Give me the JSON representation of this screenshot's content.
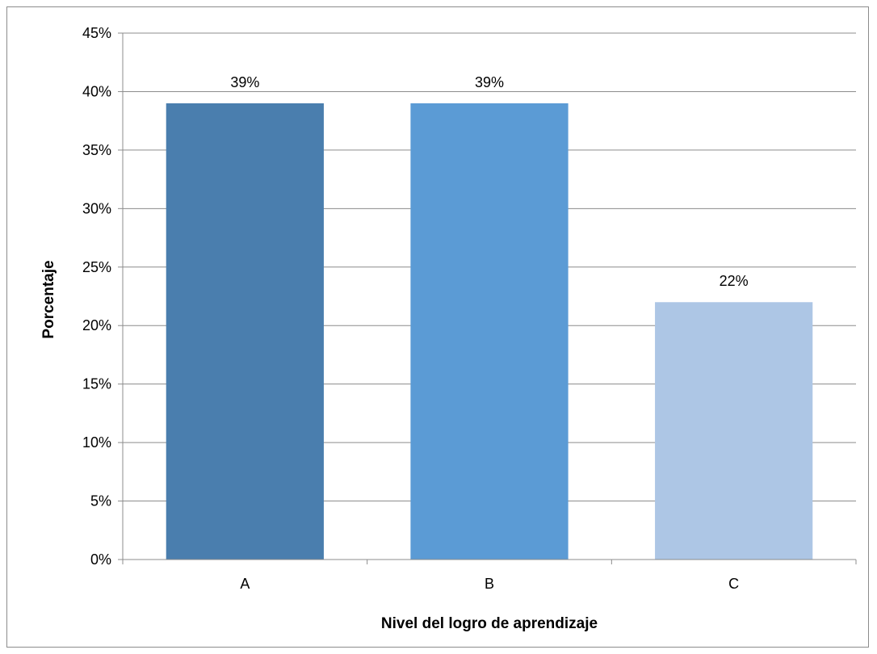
{
  "chart_data": {
    "type": "bar",
    "title": "",
    "xlabel": "Nivel del logro de aprendizaje",
    "ylabel": "Porcentaje",
    "categories": [
      "A",
      "B",
      "C"
    ],
    "values": [
      39,
      39,
      22
    ],
    "data_labels": [
      "39%",
      "39%",
      "22%"
    ],
    "ylim": [
      0,
      45
    ],
    "y_ticks": [
      0,
      5,
      10,
      15,
      20,
      25,
      30,
      35,
      40,
      45
    ],
    "y_tick_labels": [
      "0%",
      "5%",
      "10%",
      "15%",
      "20%",
      "25%",
      "30%",
      "35%",
      "40%",
      "45%"
    ],
    "bar_colors": [
      "#4a7eae",
      "#5b9bd5",
      "#adc6e5"
    ],
    "grid": true,
    "legend": "none"
  }
}
